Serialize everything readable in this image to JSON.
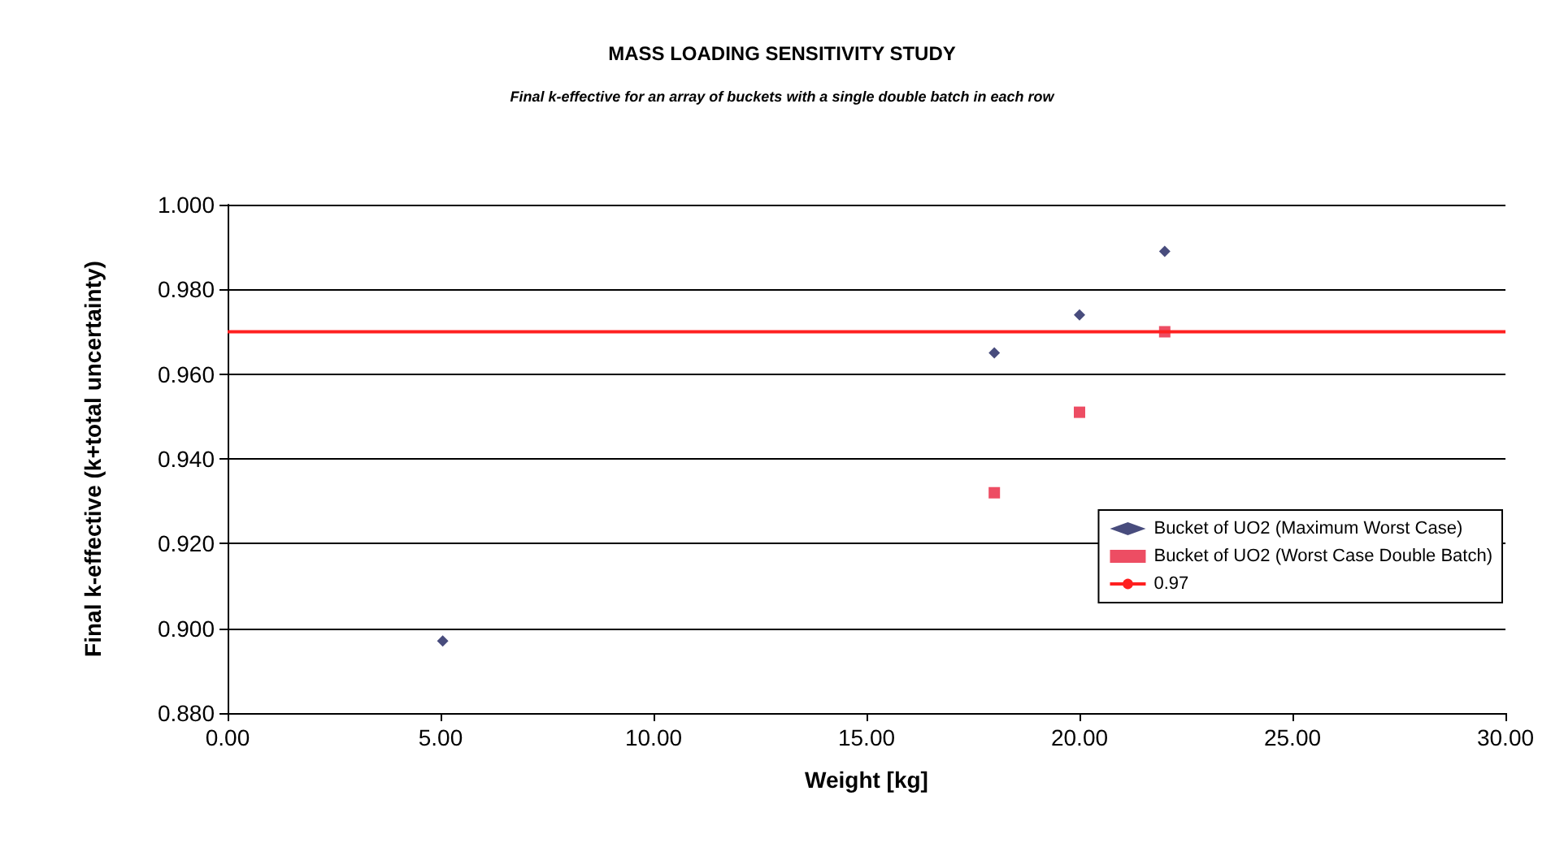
{
  "chart_data": {
    "type": "scatter",
    "title": "MASS LOADING SENSITIVITY STUDY",
    "subtitle": "Final k-effective for an array of buckets with a single double batch in each row",
    "xlabel": "Weight [kg]",
    "ylabel": "Final k-effective (k+total uncertainty)",
    "series": [
      {
        "name": "Bucket of UO2 (Maximum Worst Case)",
        "color": "#1a1f5c",
        "marker": "diamond",
        "x": [
          5.05,
          18,
          20,
          22
        ],
        "values": [
          0.897,
          0.965,
          0.974,
          0.989
        ]
      },
      {
        "name": "Bucket of UO2 (Worst Case Double Batch)",
        "color": "#e8213c",
        "marker": "square",
        "x": [
          18,
          20,
          22
        ],
        "values": [
          0.932,
          0.951,
          0.97
        ]
      },
      {
        "name": "0.97",
        "type": "line",
        "color": "#ff2020",
        "marker": "none",
        "x": [
          0,
          30
        ],
        "values": [
          0.97,
          0.97
        ]
      }
    ],
    "xlim": [
      0,
      30
    ],
    "xticks": [
      {
        "value": 0,
        "label": "0.00"
      },
      {
        "value": 5,
        "label": "5.00"
      },
      {
        "value": 10,
        "label": "10.00"
      },
      {
        "value": 15,
        "label": "15.00"
      },
      {
        "value": 20,
        "label": "20.00"
      },
      {
        "value": 25,
        "label": "25.00"
      },
      {
        "value": 30,
        "label": "30.00"
      }
    ],
    "ylim": [
      0.88,
      1.0
    ],
    "yticks": [
      {
        "value": 0.88,
        "label": "0.880"
      },
      {
        "value": 0.9,
        "label": "0.900"
      },
      {
        "value": 0.92,
        "label": "0.920"
      },
      {
        "value": 0.94,
        "label": "0.940"
      },
      {
        "value": 0.96,
        "label": "0.960"
      },
      {
        "value": 0.98,
        "label": "0.980"
      },
      {
        "value": 1.0,
        "label": "1.000"
      }
    ],
    "grid": "y",
    "legend": "bottom right"
  }
}
